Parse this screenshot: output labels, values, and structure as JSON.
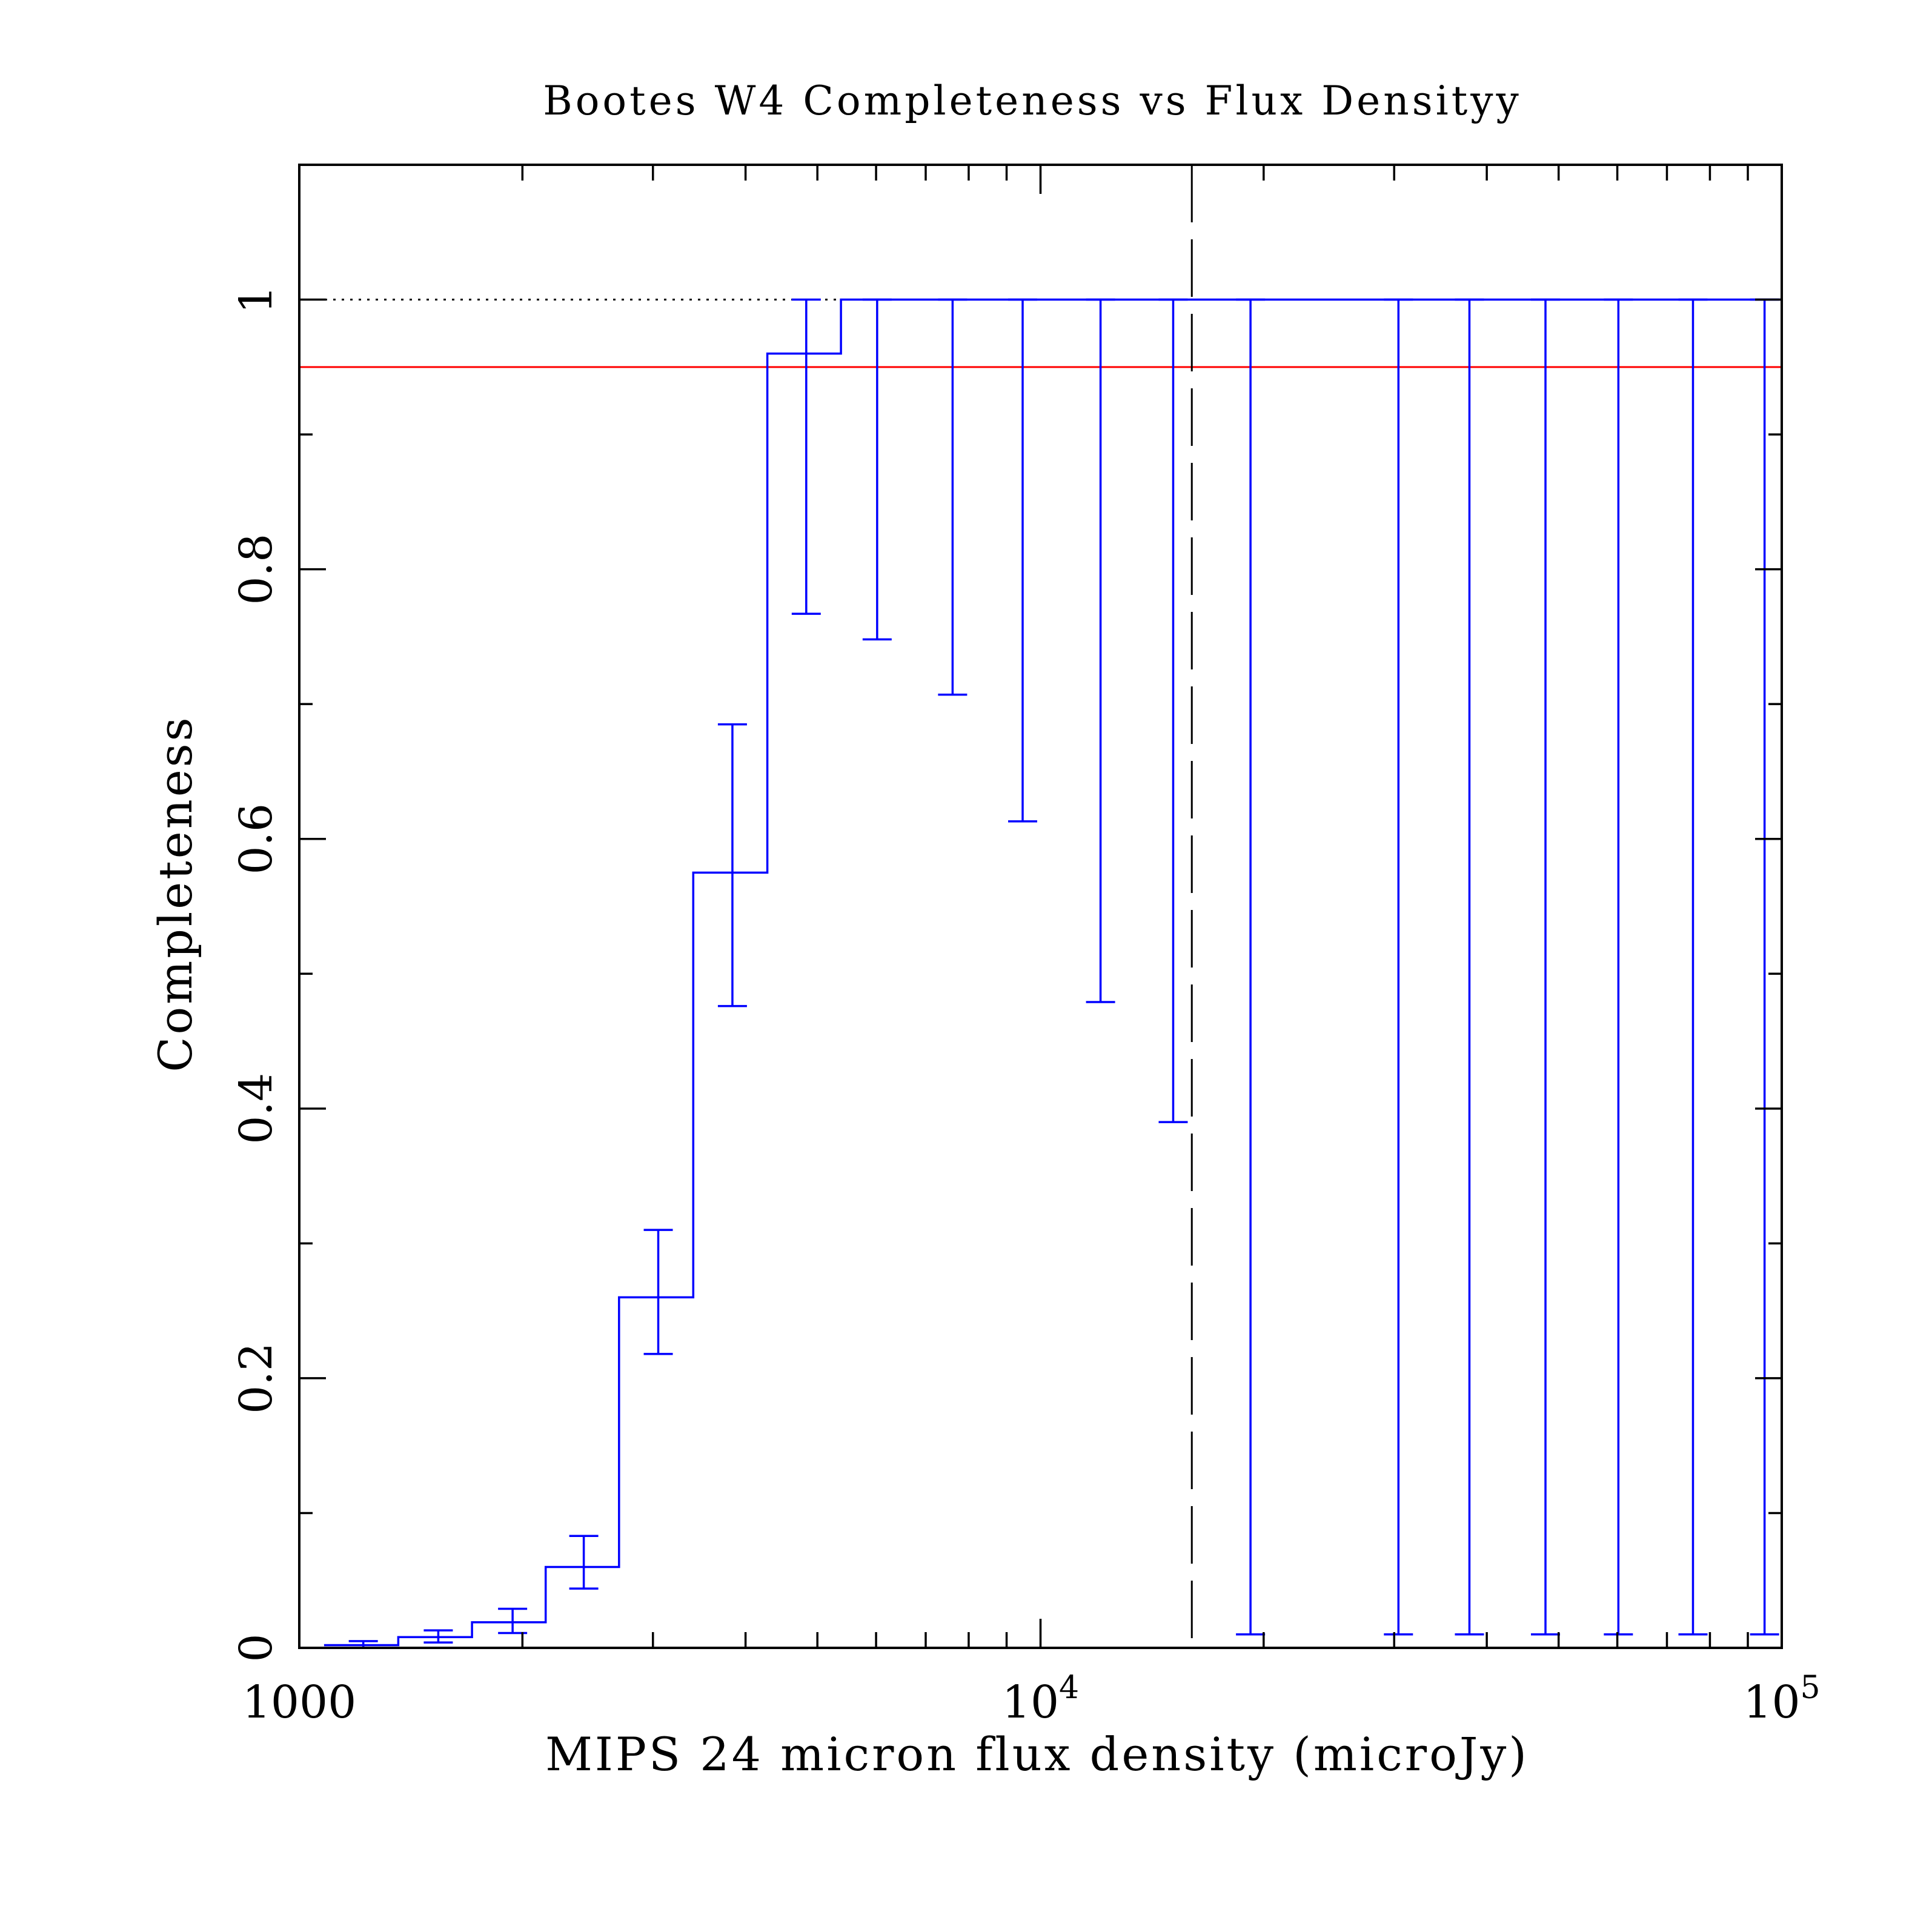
{
  "chart_data": {
    "type": "line",
    "title": "Bootes W4 Completeness vs Flux Densityy",
    "xlabel": "MIPS 24 micron flux density (microJy)",
    "ylabel": "Completeness",
    "xscale": "log",
    "xlim": [
      1000,
      100000
    ],
    "ylim": [
      0,
      1.1
    ],
    "xticks": [
      {
        "value": 1000,
        "label": "1000"
      },
      {
        "value": 10000,
        "label": "10",
        "exponent": "4"
      },
      {
        "value": 100000,
        "label": "10",
        "exponent": "5"
      }
    ],
    "yticks": [
      {
        "value": 0,
        "label": "0"
      },
      {
        "value": 0.2,
        "label": "0.2"
      },
      {
        "value": 0.4,
        "label": "0.4"
      },
      {
        "value": 0.6,
        "label": "0.6"
      },
      {
        "value": 0.8,
        "label": "0.8"
      },
      {
        "value": 1,
        "label": "1"
      }
    ],
    "reference_lines": [
      {
        "orientation": "horizontal",
        "value": 1.0,
        "style": "dotted",
        "color": "#000000"
      },
      {
        "orientation": "horizontal",
        "value": 0.95,
        "style": "solid",
        "color": "#ff0000"
      },
      {
        "orientation": "vertical",
        "value": 16000,
        "style": "dashed",
        "color": "#000000"
      }
    ],
    "series": [
      {
        "color": "#0000ff",
        "drawstyle": "histogram",
        "bins": [
          {
            "x0": 1080,
            "x1": 1360,
            "y": 0.002,
            "xc": 1220,
            "err_lo": 0.0,
            "err_hi": 0.005
          },
          {
            "x0": 1360,
            "x1": 1710,
            "y": 0.008,
            "xc": 1540,
            "err_lo": 0.004,
            "err_hi": 0.013
          },
          {
            "x0": 1710,
            "x1": 2150,
            "y": 0.019,
            "xc": 1940,
            "err_lo": 0.011,
            "err_hi": 0.029
          },
          {
            "x0": 2150,
            "x1": 2700,
            "y": 0.06,
            "xc": 2420,
            "err_lo": 0.044,
            "err_hi": 0.083
          },
          {
            "x0": 2700,
            "x1": 3400,
            "y": 0.26,
            "xc": 3050,
            "err_lo": 0.218,
            "err_hi": 0.31
          },
          {
            "x0": 3400,
            "x1": 4280,
            "y": 0.575,
            "xc": 3840,
            "err_lo": 0.476,
            "err_hi": 0.685
          },
          {
            "x0": 4280,
            "x1": 5380,
            "y": 0.96,
            "xc": 4830,
            "err_lo": 0.767,
            "err_hi": 1.0
          },
          {
            "x0": 5380,
            "x1": 6770,
            "y": 1.0,
            "xc": 6020,
            "err_lo": 0.748,
            "err_hi": 1.0
          },
          {
            "x0": 6770,
            "x1": 8520,
            "y": 1.0,
            "xc": 7610,
            "err_lo": 0.707,
            "err_hi": 1.0
          },
          {
            "x0": 8520,
            "x1": 10720,
            "y": 1.0,
            "xc": 9460,
            "err_lo": 0.613,
            "err_hi": 1.0
          },
          {
            "x0": 10720,
            "x1": 13500,
            "y": 1.0,
            "xc": 12050,
            "err_lo": 0.479,
            "err_hi": 1.0
          },
          {
            "x0": 13500,
            "x1": 17000,
            "y": 1.0,
            "xc": 15100,
            "err_lo": 0.39,
            "err_hi": 1.0
          },
          {
            "x0": 17000,
            "x1": 24000,
            "y": 1.0,
            "xc": 19200,
            "err_lo": 0.01,
            "err_hi": 1.0
          },
          {
            "x0": 24000,
            "x1": 33000,
            "y": 1.0,
            "xc": 30400,
            "err_lo": 0.01,
            "err_hi": 1.0
          },
          {
            "x0": 33000,
            "x1": 42000,
            "y": 1.0,
            "xc": 37900,
            "err_lo": 0.01,
            "err_hi": 1.0
          },
          {
            "x0": 42000,
            "x1": 53000,
            "y": 1.0,
            "xc": 48000,
            "err_lo": 0.01,
            "err_hi": 1.0
          },
          {
            "x0": 53000,
            "x1": 68000,
            "y": 1.0,
            "xc": 60200,
            "err_lo": 0.01,
            "err_hi": 1.0
          },
          {
            "x0": 68000,
            "x1": 84000,
            "y": 1.0,
            "xc": 75900,
            "err_lo": 0.01,
            "err_hi": 1.0
          },
          {
            "x0": 84000,
            "x1": 100000,
            "y": 1.0,
            "xc": 94800,
            "err_lo": 0.01,
            "err_hi": 1.0
          }
        ]
      }
    ]
  }
}
